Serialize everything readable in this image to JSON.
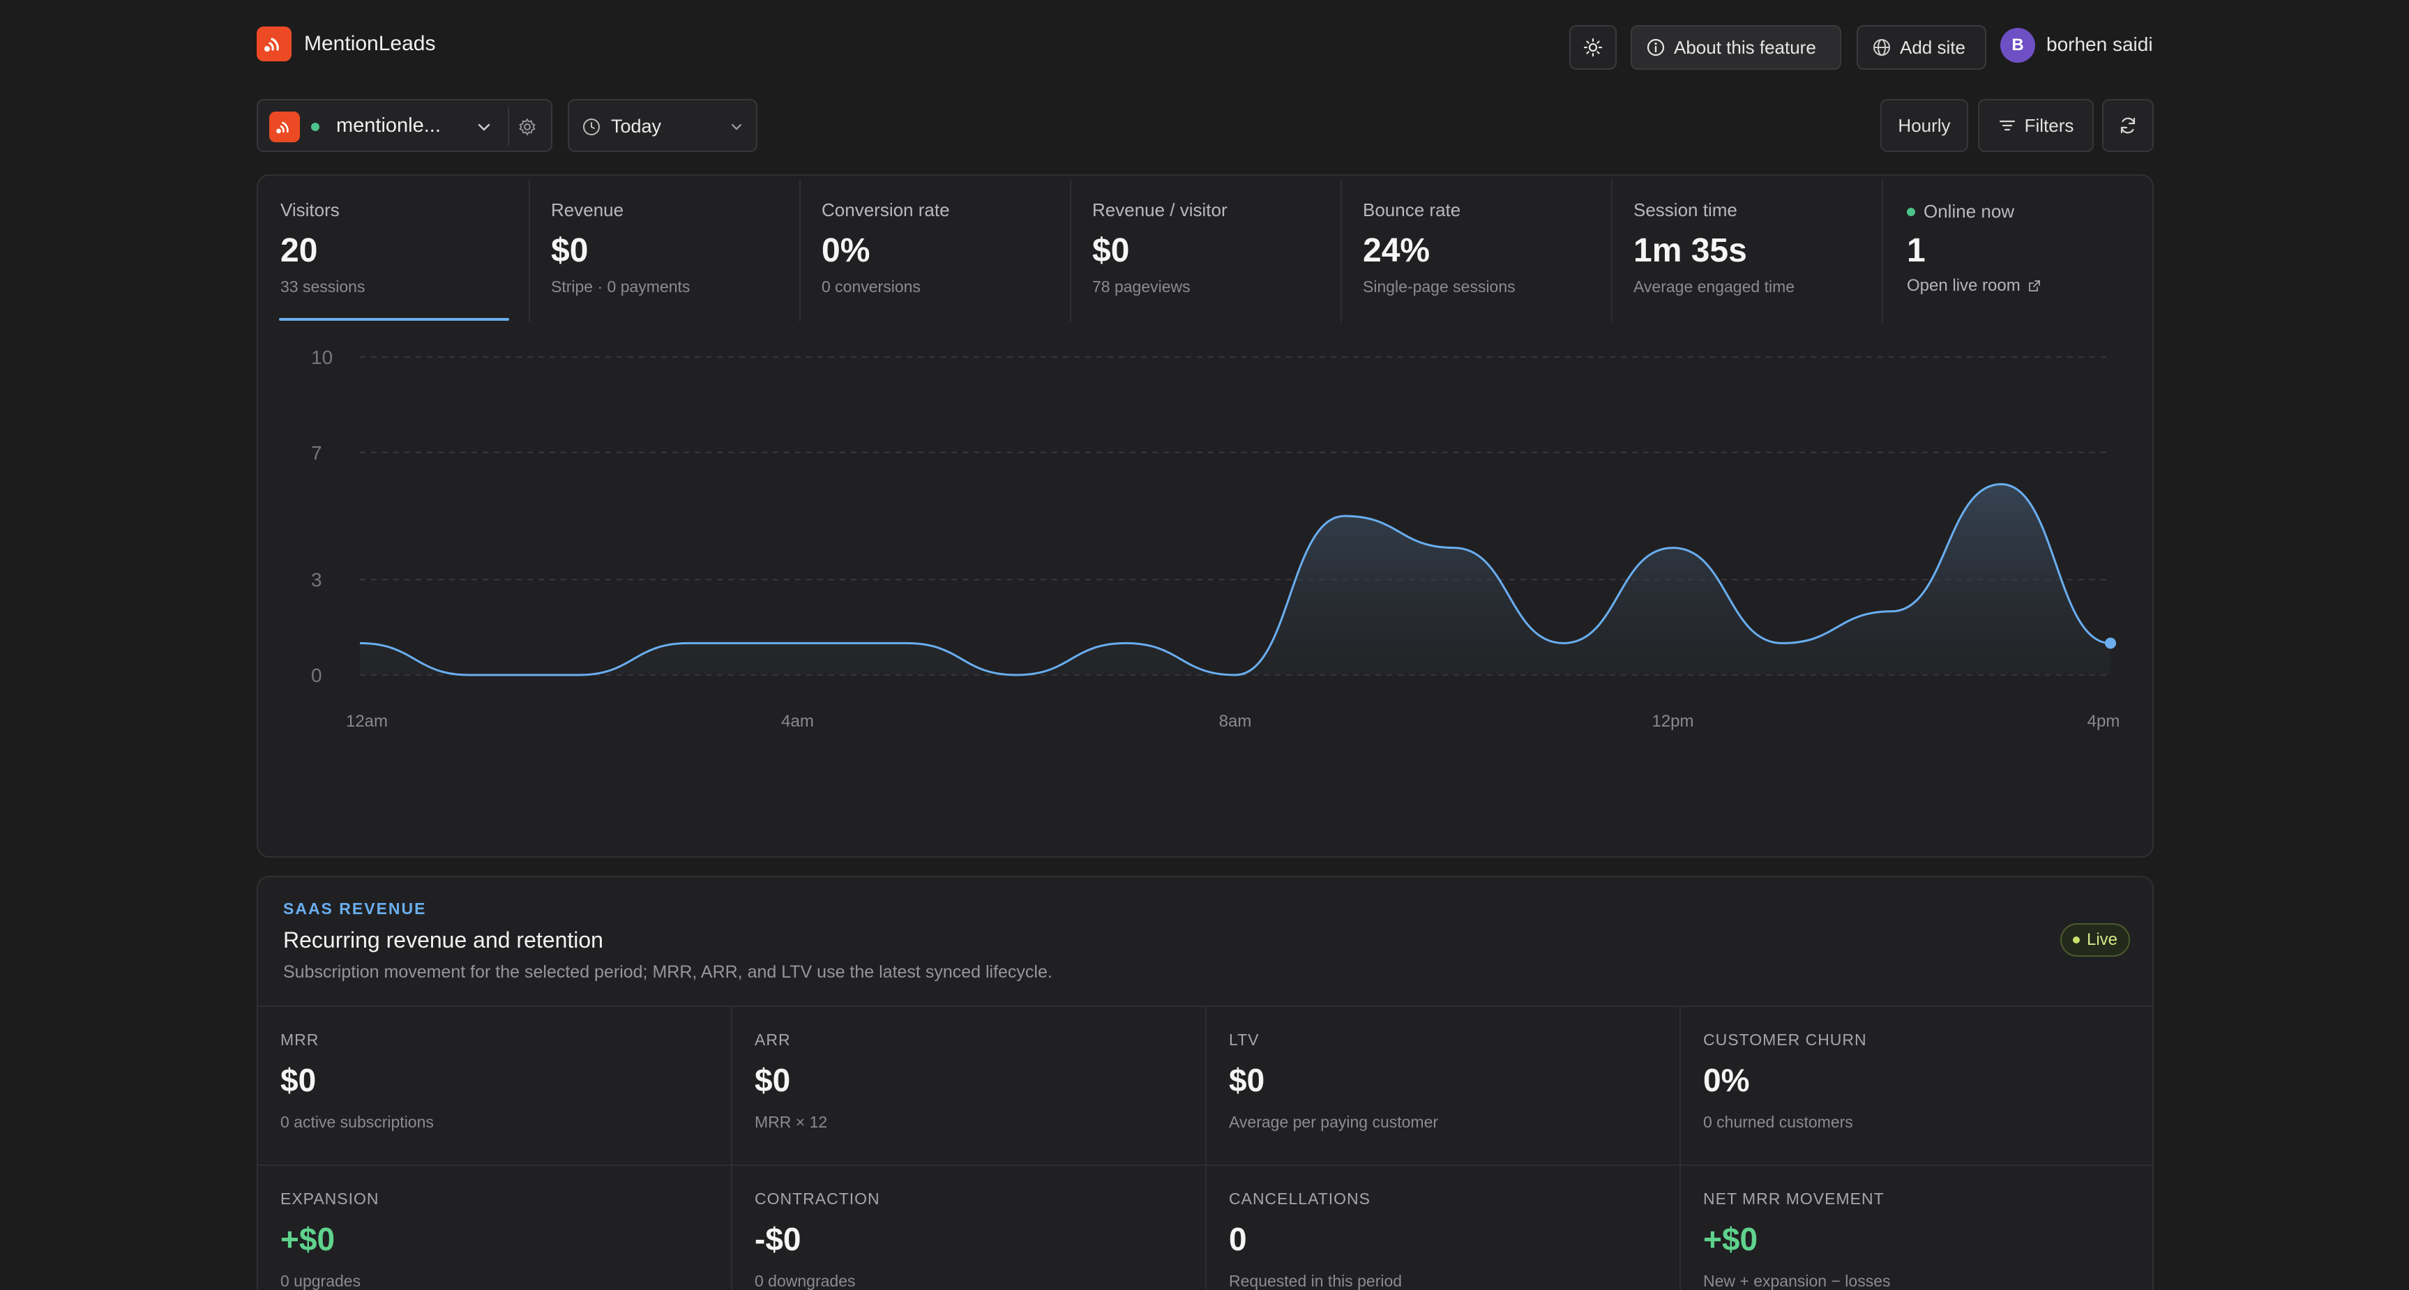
{
  "header": {
    "brand": "MentionLeads",
    "about_label": "About this feature",
    "add_site_label": "Add site",
    "avatar_initial": "B",
    "user_name": "borhen saidi"
  },
  "toolbar": {
    "site_name": "mentionle...",
    "date_range": "Today",
    "interval": "Hourly",
    "filters_label": "Filters"
  },
  "metrics": [
    {
      "label": "Visitors",
      "value": "20",
      "sub": "33 sessions",
      "active": true
    },
    {
      "label": "Revenue",
      "value": "$0",
      "sub": "Stripe · 0 payments"
    },
    {
      "label": "Conversion rate",
      "value": "0%",
      "sub": "0 conversions"
    },
    {
      "label": "Revenue / visitor",
      "value": "$0",
      "sub": "78 pageviews"
    },
    {
      "label": "Bounce rate",
      "value": "24%",
      "sub": "Single-page sessions"
    },
    {
      "label": "Session time",
      "value": "1m 35s",
      "sub": "Average engaged time"
    }
  ],
  "online": {
    "label": "Online now",
    "value": "1",
    "link": "Open live room"
  },
  "chart_data": {
    "type": "area",
    "x": [
      "12am",
      "1am",
      "2am",
      "3am",
      "4am",
      "5am",
      "6am",
      "7am",
      "8am",
      "9am",
      "10am",
      "11am",
      "12pm",
      "1pm",
      "2pm",
      "3pm",
      "4pm"
    ],
    "xticks": [
      "12am",
      "4am",
      "8am",
      "12pm",
      "4pm"
    ],
    "yticks": [
      0,
      3,
      7,
      10
    ],
    "ylim": [
      0,
      10
    ],
    "series": [
      {
        "values": [
          1,
          0,
          0,
          1,
          1,
          1,
          0,
          1,
          0,
          5,
          4,
          1,
          4,
          1,
          2,
          6,
          1
        ]
      }
    ],
    "grid": true,
    "accent": "#6aaef0"
  },
  "saas": {
    "eyebrow": "SAAS REVENUE",
    "title": "Recurring revenue and retention",
    "description": "Subscription movement for the selected period; MRR, ARR, and LTV use the latest synced lifecycle.",
    "badge": "Live",
    "kpis": [
      {
        "label": "MRR",
        "value": "$0",
        "sub": "0 active subscriptions"
      },
      {
        "label": "ARR",
        "value": "$0",
        "sub": "MRR × 12"
      },
      {
        "label": "LTV",
        "value": "$0",
        "sub": "Average per paying customer"
      },
      {
        "label": "CUSTOMER CHURN",
        "value": "0%",
        "sub": "0 churned customers"
      },
      {
        "label": "EXPANSION",
        "value": "+$0",
        "sub": "0 upgrades",
        "positive": true
      },
      {
        "label": "CONTRACTION",
        "value": "-$0",
        "sub": "0 downgrades"
      },
      {
        "label": "CANCELLATIONS",
        "value": "0",
        "sub": "Requested in this period"
      },
      {
        "label": "NET MRR MOVEMENT",
        "value": "+$0",
        "sub": "New + expansion − losses",
        "positive": true
      }
    ]
  }
}
